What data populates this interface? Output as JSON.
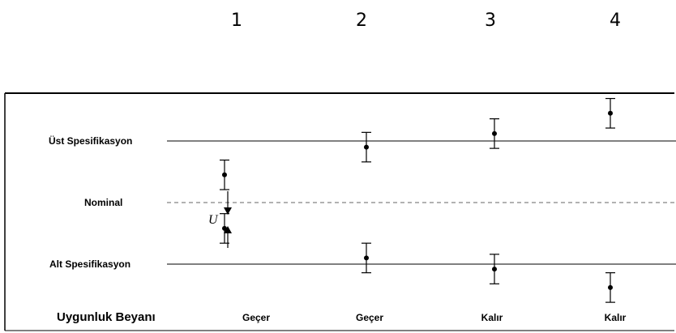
{
  "columns": [
    {
      "number": "1",
      "verdict": "Geçer"
    },
    {
      "number": "2",
      "verdict": "Geçer"
    },
    {
      "number": "3",
      "verdict": "Kalır"
    },
    {
      "number": "4",
      "verdict": "Kalır"
    }
  ],
  "limits": {
    "upper": "Üst Spesifikasyon",
    "nominal": "Nominal",
    "lower": "Alt Spesifikasyon"
  },
  "declaration_label": "Uygunluk Beyanı",
  "uncertainty_symbol": "U",
  "measurements": [
    {
      "column": 1,
      "value": 0.45
    },
    {
      "column": 1,
      "value": -0.42
    },
    {
      "column": 2,
      "value": 0.9
    },
    {
      "column": 2,
      "value": -0.9
    },
    {
      "column": 3,
      "value": 1.12
    },
    {
      "column": 3,
      "value": -1.08
    },
    {
      "column": 4,
      "value": 1.45
    },
    {
      "column": 4,
      "value": -1.38
    }
  ],
  "scale": {
    "upper_limit": 1.0,
    "nominal": 0.0,
    "lower_limit": -1.0,
    "half_interval": 0.24
  }
}
